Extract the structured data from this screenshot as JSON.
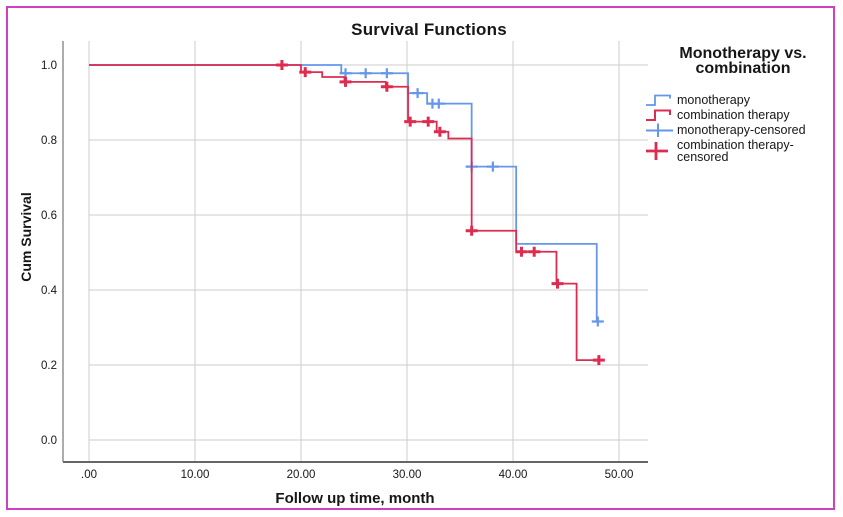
{
  "figure": {
    "border_color": "#cf3fc1"
  },
  "colors": {
    "monotherapy": "#6497e9",
    "combination": "#de2c50",
    "grid": "#cccccc",
    "spine": "#757575",
    "text": "#161616",
    "figure_border": "#cf3fc1"
  },
  "legend": {
    "title_line1": "Monotherapy vs.",
    "title_line2": "combination",
    "items": [
      {
        "label": "monotherapy",
        "type": "step-line",
        "color": "#6497e9"
      },
      {
        "label": "combination therapy",
        "type": "step-line",
        "color": "#de2c50"
      },
      {
        "label": "monotherapy-censored",
        "type": "censor-plus",
        "color": "#6497e9"
      },
      {
        "label": "combination therapy-censored",
        "label_line1": "combination therapy-",
        "label_line2": "censored",
        "type": "censor-plus",
        "color": "#de2c50"
      }
    ]
  },
  "chart_data": {
    "type": "line",
    "subtype": "kaplan-meier-step",
    "title": "Survival Functions",
    "xlabel": "Follow up time, month",
    "ylabel": "Cum Survival",
    "xlim": [
      -2.5,
      52.7
    ],
    "ylim": [
      -0.06,
      1.06
    ],
    "grid": true,
    "legend_position": "right",
    "x_ticks": [
      {
        "value": 0,
        "label": ".00"
      },
      {
        "value": 10,
        "label": "10.00"
      },
      {
        "value": 20,
        "label": "20.00"
      },
      {
        "value": 30,
        "label": "30.00"
      },
      {
        "value": 40,
        "label": "40.00"
      },
      {
        "value": 50,
        "label": "50.00"
      }
    ],
    "y_ticks": [
      {
        "value": 1.0,
        "label": "1.0"
      },
      {
        "value": 0.8,
        "label": "0.8"
      },
      {
        "value": 0.6,
        "label": "0.6"
      },
      {
        "value": 0.4,
        "label": "0.4"
      },
      {
        "value": 0.2,
        "label": "0.2"
      },
      {
        "value": 0.0,
        "label": "0.0"
      }
    ],
    "series": [
      {
        "name": "monotherapy",
        "color": "#6497e9",
        "line_width": 1.8,
        "censor_stroke": 2.2,
        "end_t": 47.9,
        "steps": [
          {
            "t": 0,
            "s": 1.0
          },
          {
            "t": 23.8,
            "s": 0.978
          },
          {
            "t": 30.1,
            "s": 0.925
          },
          {
            "t": 31.9,
            "s": 0.897
          },
          {
            "t": 36.1,
            "s": 0.729
          },
          {
            "t": 40.3,
            "s": 0.523
          },
          {
            "t": 47.9,
            "s": 0.316
          }
        ],
        "censored": [
          {
            "t": 24.2,
            "s": 0.978
          },
          {
            "t": 26.1,
            "s": 0.978
          },
          {
            "t": 28.1,
            "s": 0.978
          },
          {
            "t": 31.0,
            "s": 0.925
          },
          {
            "t": 32.4,
            "s": 0.897
          },
          {
            "t": 33.0,
            "s": 0.897
          },
          {
            "t": 36.1,
            "s": 0.729
          },
          {
            "t": 38.1,
            "s": 0.729
          },
          {
            "t": 48.0,
            "s": 0.316
          }
        ]
      },
      {
        "name": "combination therapy",
        "color": "#de2c50",
        "line_width": 1.8,
        "censor_stroke": 3,
        "end_t": 48.6,
        "steps": [
          {
            "t": 0,
            "s": 1.0
          },
          {
            "t": 20.0,
            "s": 0.981
          },
          {
            "t": 22.0,
            "s": 0.968
          },
          {
            "t": 24.1,
            "s": 0.955
          },
          {
            "t": 28.0,
            "s": 0.942
          },
          {
            "t": 30.1,
            "s": 0.849
          },
          {
            "t": 32.8,
            "s": 0.822
          },
          {
            "t": 33.9,
            "s": 0.804
          },
          {
            "t": 36.1,
            "s": 0.558
          },
          {
            "t": 40.3,
            "s": 0.502
          },
          {
            "t": 44.1,
            "s": 0.417
          },
          {
            "t": 46.0,
            "s": 0.213
          }
        ],
        "censored": [
          {
            "t": 18.2,
            "s": 1.0
          },
          {
            "t": 20.4,
            "s": 0.981
          },
          {
            "t": 24.2,
            "s": 0.955
          },
          {
            "t": 28.1,
            "s": 0.942
          },
          {
            "t": 30.3,
            "s": 0.849
          },
          {
            "t": 32.0,
            "s": 0.849
          },
          {
            "t": 33.1,
            "s": 0.822
          },
          {
            "t": 36.1,
            "s": 0.558
          },
          {
            "t": 40.8,
            "s": 0.502
          },
          {
            "t": 42.0,
            "s": 0.502
          },
          {
            "t": 44.2,
            "s": 0.417
          },
          {
            "t": 48.1,
            "s": 0.213
          }
        ]
      }
    ]
  }
}
